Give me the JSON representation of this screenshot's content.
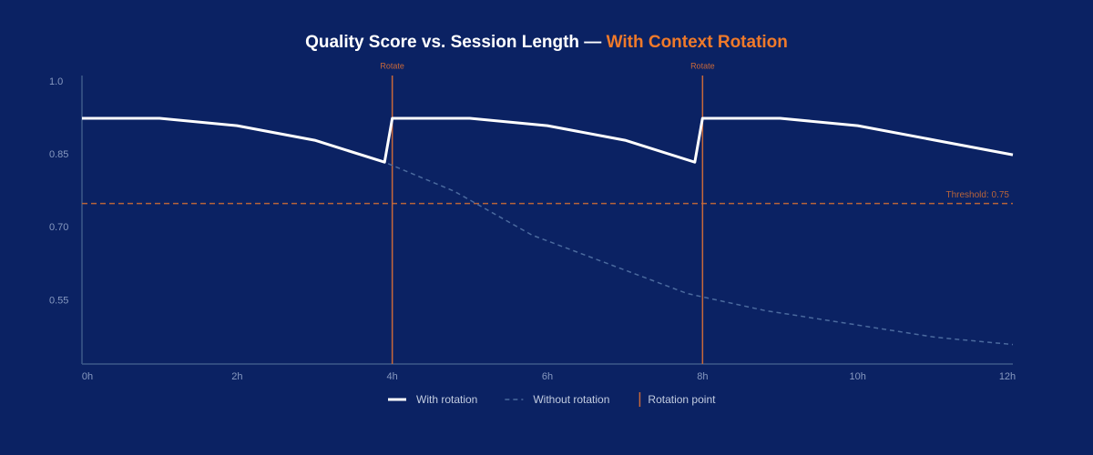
{
  "chart_data": {
    "type": "line",
    "title": "Quality Score vs. Session Length —",
    "title_highlight": "With Context Rotation",
    "title_highlight_color": "#f07a2a",
    "xlim": [
      0,
      12
    ],
    "xticks": [
      {
        "value": 0,
        "label": "0h"
      },
      {
        "value": 2,
        "label": "2h"
      },
      {
        "value": 4,
        "label": "4h"
      },
      {
        "value": 6,
        "label": "6h"
      },
      {
        "value": 8,
        "label": "8h"
      },
      {
        "value": 10,
        "label": "10h"
      },
      {
        "value": 12,
        "label": "12h"
      }
    ],
    "ylim": [
      0.42,
      1.013
    ],
    "yticks": [
      {
        "value": 1,
        "label": "1.0"
      },
      0.85,
      {
        "value": 0.7,
        "label": "0.70"
      },
      0.55
    ],
    "series": [
      {
        "name": "Without rotation",
        "color": "#4b6a9e",
        "dashed": true,
        "x": [
          0,
          1,
          2,
          3,
          3.9,
          4.8,
          5.8,
          6.8,
          7.8,
          8.8,
          10,
          11,
          12
        ],
        "values": [
          0.925,
          0.925,
          0.91,
          0.88,
          0.835,
          0.775,
          0.685,
          0.625,
          0.565,
          0.53,
          0.5,
          0.475,
          0.46
        ]
      },
      {
        "name": "With rotation",
        "color": "#ffffff",
        "dashed": false,
        "x": [
          0,
          1,
          2,
          3,
          3.9,
          4,
          5,
          6,
          7,
          7.9,
          8,
          9,
          10,
          11,
          12
        ],
        "values": [
          0.925,
          0.925,
          0.91,
          0.88,
          0.835,
          0.925,
          0.925,
          0.91,
          0.88,
          0.835,
          0.925,
          0.925,
          0.91,
          0.88,
          0.85
        ]
      }
    ],
    "threshold": {
      "value": 0.75,
      "label": "Threshold: 0.75",
      "color": "#b8643a"
    },
    "rotations": [
      {
        "x": 4,
        "label": "Rotate"
      },
      {
        "x": 8,
        "label": "Rotate"
      }
    ],
    "rotation_color": "#c8683a",
    "rotation_legend": "Rotation point"
  }
}
